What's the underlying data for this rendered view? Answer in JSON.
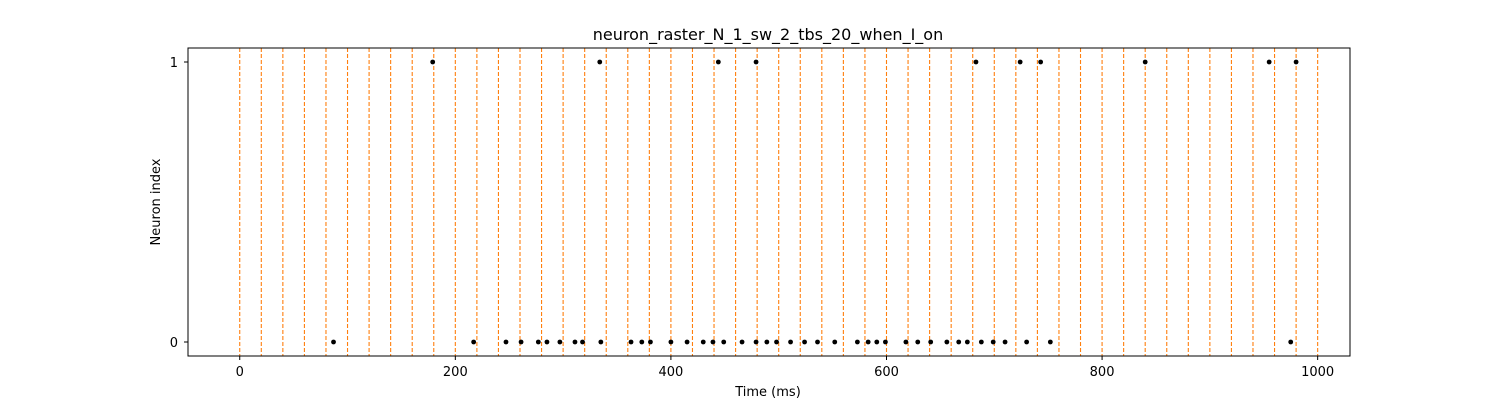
{
  "chart_data": {
    "type": "scatter",
    "title": "neuron_raster_N_1_sw_2_tbs_20_when_I_on",
    "xlabel": "Time (ms)",
    "ylabel": "Neuron index",
    "xlim": [
      -48,
      1030
    ],
    "ylim": [
      -0.05,
      1.05
    ],
    "xticks": [
      0,
      200,
      400,
      600,
      800,
      1000
    ],
    "yticks": [
      0,
      1
    ],
    "grid": false,
    "legend": "none",
    "colors": {
      "spike": "#000000",
      "time_bin_line": "#ff7f0e",
      "axes": "#000000"
    },
    "time_bin_lines": {
      "style": "dashed",
      "x": [
        0,
        20,
        40,
        60,
        80,
        100,
        120,
        140,
        160,
        180,
        200,
        220,
        240,
        260,
        280,
        300,
        320,
        340,
        360,
        380,
        400,
        420,
        440,
        460,
        480,
        500,
        520,
        540,
        560,
        580,
        600,
        620,
        640,
        660,
        680,
        700,
        720,
        740,
        760,
        780,
        800,
        820,
        840,
        860,
        880,
        900,
        920,
        940,
        960,
        980,
        1000
      ]
    },
    "series": [
      {
        "neuron": 0,
        "spike_times": [
          87,
          217,
          247,
          261,
          277,
          285,
          297,
          311,
          318,
          335,
          363,
          373,
          381,
          400,
          415,
          430,
          439,
          449,
          466,
          479,
          489,
          498,
          511,
          524,
          536,
          552,
          573,
          583,
          591,
          599,
          618,
          629,
          641,
          656,
          667,
          675,
          688,
          699,
          710,
          730,
          752,
          975
        ]
      },
      {
        "neuron": 1,
        "spike_times": [
          179,
          334,
          444,
          479,
          683,
          724,
          743,
          840,
          955,
          980
        ]
      }
    ]
  }
}
